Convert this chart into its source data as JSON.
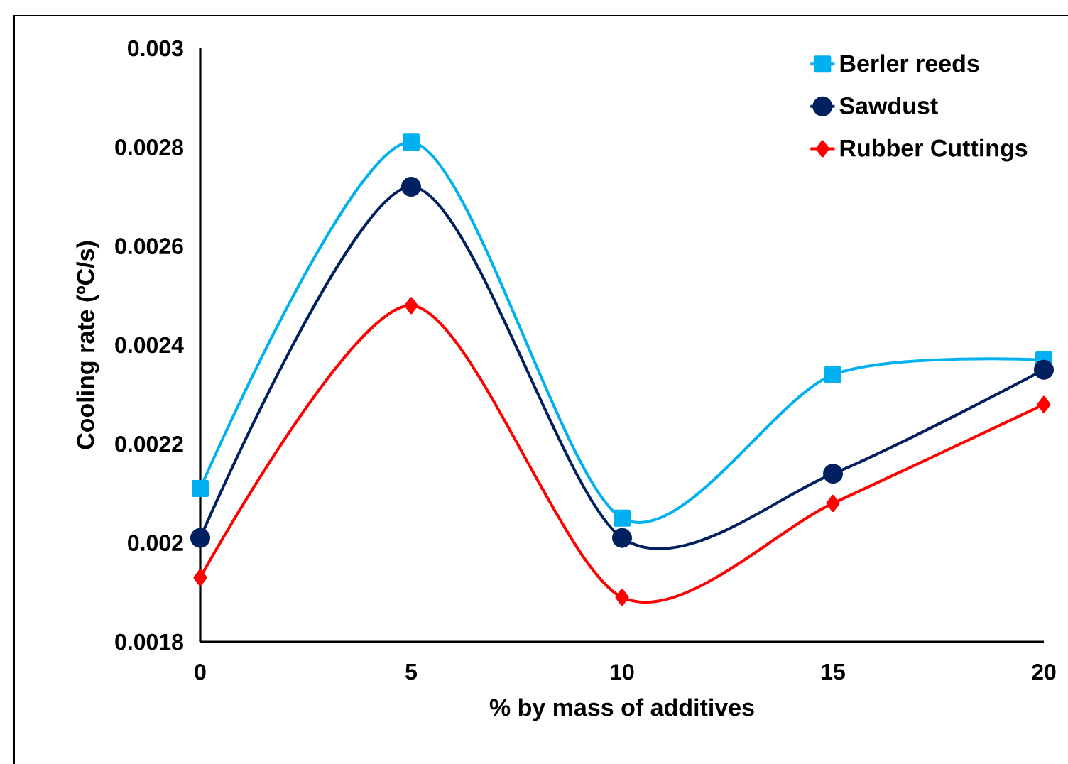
{
  "chart_data": {
    "type": "line",
    "xlabel": "% by mass of additives",
    "ylabel": "Cooling rate (ºC/s)",
    "x": [
      0,
      5,
      10,
      15,
      20
    ],
    "series": [
      {
        "name": "Berler reeds",
        "color": "#00b0f0",
        "marker": "square",
        "values": [
          0.00211,
          0.00281,
          0.00205,
          0.00234,
          0.00237
        ]
      },
      {
        "name": "Sawdust",
        "color": "#002060",
        "marker": "circle",
        "values": [
          0.00201,
          0.00272,
          0.00201,
          0.00214,
          0.00235
        ]
      },
      {
        "name": "Rubber Cuttings",
        "color": "#ff0000",
        "marker": "diamond",
        "values": [
          0.00193,
          0.00248,
          0.00189,
          0.00208,
          0.00228
        ]
      }
    ],
    "xlim": [
      0,
      20
    ],
    "xticks": [
      0,
      5,
      10,
      15,
      20
    ],
    "ylim": [
      0.0018,
      0.003
    ],
    "yticks": [
      0.0018,
      0.002,
      0.0022,
      0.0024,
      0.0026,
      0.0028,
      0.003
    ],
    "grid": false,
    "legend": "top right"
  }
}
